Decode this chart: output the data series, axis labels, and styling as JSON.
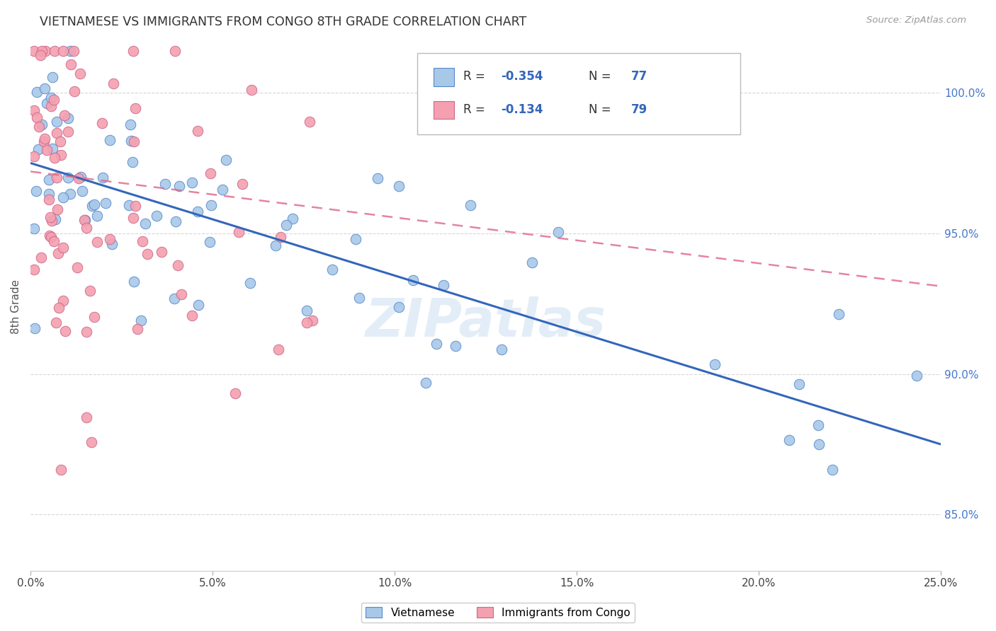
{
  "title": "VIETNAMESE VS IMMIGRANTS FROM CONGO 8TH GRADE CORRELATION CHART",
  "source": "Source: ZipAtlas.com",
  "ylabel": "8th Grade",
  "yticks": [
    85.0,
    90.0,
    95.0,
    100.0
  ],
  "xmin": 0.0,
  "xmax": 0.25,
  "ymin": 83.0,
  "ymax": 101.8,
  "legend_label1": "Vietnamese",
  "legend_label2": "Immigrants from Congo",
  "R1": -0.354,
  "N1": 77,
  "R2": -0.134,
  "N2": 79,
  "color_blue": "#a8c8e8",
  "color_pink": "#f4a0b0",
  "edge_blue": "#5588cc",
  "edge_pink": "#cc6688",
  "trendline_blue": "#3366bb",
  "trendline_pink": "#dd6688",
  "background": "#ffffff",
  "watermark": "ZIPatlas"
}
